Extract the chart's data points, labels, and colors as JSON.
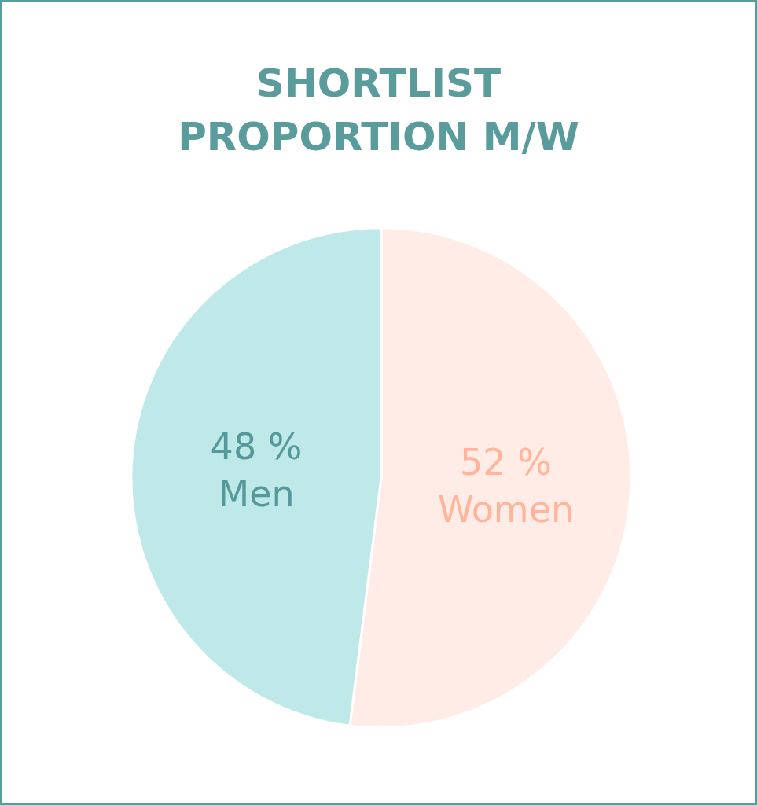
{
  "chart_data": {
    "type": "pie",
    "title": "SHORTLIST PROPORTION M/W",
    "categories": [
      "Women",
      "Men"
    ],
    "values": [
      52,
      48
    ],
    "value_labels": [
      "52 %",
      "48 %"
    ],
    "colors": [
      "#ffece6",
      "#bfe8e8"
    ],
    "legend": false
  }
}
